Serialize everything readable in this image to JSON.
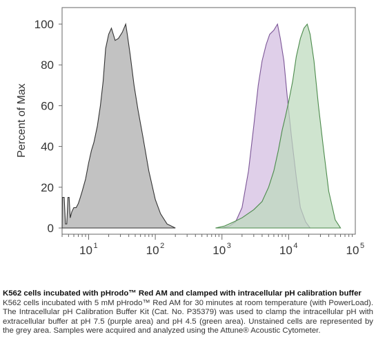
{
  "caption": {
    "title": "K562 cells incubated with pHrodo™ Red AM and clamped with intracellular pH calibration buffer",
    "body": "K562 cells incubated with 5 mM pHrodo™ Red AM for 30 minutes at room temperature (with PowerLoad). The Intracellular pH Calibration Buffer Kit (Cat. No. P35379) was used to clamp the intracellular pH with extracellular buffer at pH 7.5 (purple area) and pH 4.5 (green area). Unstained cells are represented by the grey area. Samples were acquired and analyzed using the Attune® Acoustic Cytometer."
  },
  "chart_data": {
    "type": "area",
    "ylabel": "Percent of Max",
    "xscale": "log",
    "xlim": [
      4,
      100000
    ],
    "ylim": [
      0,
      100
    ],
    "yticks": [
      0,
      20,
      40,
      60,
      80,
      100
    ],
    "xticks": [
      {
        "value": 10,
        "base": "10",
        "exp": "1"
      },
      {
        "value": 100,
        "base": "10",
        "exp": "2"
      },
      {
        "value": 1000,
        "base": "10",
        "exp": "3"
      },
      {
        "value": 10000,
        "base": "10",
        "exp": "4"
      },
      {
        "value": 100000,
        "base": "10",
        "exp": "5"
      }
    ],
    "grid": false,
    "series": [
      {
        "color_fill": "#aaaaaa",
        "color_line": "#333333",
        "points": [
          [
            4,
            0
          ],
          [
            4.05,
            15
          ],
          [
            4.3,
            15
          ],
          [
            4.5,
            2
          ],
          [
            4.7,
            2
          ],
          [
            4.9,
            15
          ],
          [
            5.1,
            15
          ],
          [
            5.3,
            5
          ],
          [
            5.6,
            8
          ],
          [
            6,
            10
          ],
          [
            6.5,
            10
          ],
          [
            7,
            12
          ],
          [
            7.5,
            15
          ],
          [
            8,
            18
          ],
          [
            9,
            24
          ],
          [
            10,
            32
          ],
          [
            11,
            38
          ],
          [
            12,
            42
          ],
          [
            13.5,
            50
          ],
          [
            15,
            60
          ],
          [
            16.5,
            72
          ],
          [
            18,
            88
          ],
          [
            20,
            95
          ],
          [
            22,
            98
          ],
          [
            25,
            92
          ],
          [
            28,
            93
          ],
          [
            32,
            96
          ],
          [
            36,
            100
          ],
          [
            38,
            95
          ],
          [
            42,
            85
          ],
          [
            48,
            70
          ],
          [
            55,
            58
          ],
          [
            65,
            45
          ],
          [
            80,
            28
          ],
          [
            100,
            14
          ],
          [
            120,
            7
          ],
          [
            150,
            2
          ],
          [
            200,
            0
          ]
        ]
      },
      {
        "color_fill": "#d2bce0",
        "color_line": "#7b5596",
        "points": [
          [
            1000,
            0
          ],
          [
            1300,
            1
          ],
          [
            1600,
            3
          ],
          [
            2000,
            10
          ],
          [
            2500,
            28
          ],
          [
            3000,
            50
          ],
          [
            3500,
            70
          ],
          [
            4000,
            82
          ],
          [
            4600,
            90
          ],
          [
            5200,
            95
          ],
          [
            6000,
            97
          ],
          [
            6800,
            100
          ],
          [
            7500,
            93
          ],
          [
            8500,
            82
          ],
          [
            9500,
            65
          ],
          [
            11000,
            45
          ],
          [
            13000,
            25
          ],
          [
            15000,
            10
          ],
          [
            18000,
            3
          ],
          [
            21000,
            0
          ]
        ]
      },
      {
        "color_fill": "#bcd9bc",
        "color_line": "#4b8a4b",
        "points": [
          [
            800,
            0
          ],
          [
            1100,
            1
          ],
          [
            1500,
            3
          ],
          [
            2000,
            5
          ],
          [
            3000,
            9
          ],
          [
            4000,
            13
          ],
          [
            5000,
            20
          ],
          [
            6000,
            28
          ],
          [
            7000,
            38
          ],
          [
            8000,
            48
          ],
          [
            9000,
            55
          ],
          [
            10000,
            62
          ],
          [
            11500,
            72
          ],
          [
            13000,
            84
          ],
          [
            15000,
            93
          ],
          [
            17000,
            98
          ],
          [
            19000,
            100
          ],
          [
            21000,
            95
          ],
          [
            24000,
            82
          ],
          [
            28000,
            60
          ],
          [
            33000,
            40
          ],
          [
            40000,
            18
          ],
          [
            50000,
            4
          ],
          [
            60000,
            0
          ]
        ]
      }
    ]
  }
}
